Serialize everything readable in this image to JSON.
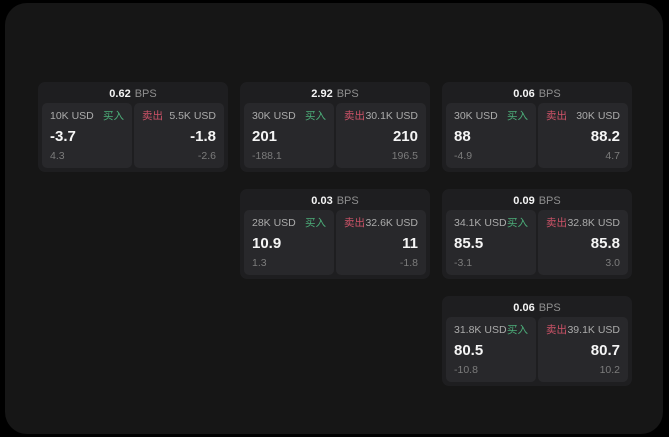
{
  "labels": {
    "buy": "买入",
    "sell": "卖出",
    "bps": "BPS"
  },
  "colors": {
    "buy_green": "#4caf7a",
    "sell_red": "#ce5368",
    "card_bg": "#1e1e20",
    "panel_bg": "#28282b",
    "app_bg": "#161616"
  },
  "cards": [
    {
      "bps": "0.62",
      "buy": {
        "size": "10K USD",
        "value": "-3.7",
        "sub": "4.3"
      },
      "sell": {
        "size": "5.5K USD",
        "value": "-1.8",
        "sub": "-2.6"
      }
    },
    {
      "bps": "2.92",
      "buy": {
        "size": "30K USD",
        "value": "201",
        "sub": "-188.1"
      },
      "sell": {
        "size": "30.1K USD",
        "value": "210",
        "sub": "196.5"
      }
    },
    {
      "bps": "0.06",
      "buy": {
        "size": "30K USD",
        "value": "88",
        "sub": "-4.9"
      },
      "sell": {
        "size": "30K USD",
        "value": "88.2",
        "sub": "4.7"
      }
    },
    {
      "bps": "0.03",
      "buy": {
        "size": "28K USD",
        "value": "10.9",
        "sub": "1.3"
      },
      "sell": {
        "size": "32.6K USD",
        "value": "11",
        "sub": "-1.8"
      }
    },
    {
      "bps": "0.09",
      "buy": {
        "size": "34.1K USD",
        "value": "85.5",
        "sub": "-3.1"
      },
      "sell": {
        "size": "32.8K USD",
        "value": "85.8",
        "sub": "3.0"
      }
    },
    {
      "bps": "0.06",
      "buy": {
        "size": "31.8K USD",
        "value": "80.5",
        "sub": "-10.8"
      },
      "sell": {
        "size": "39.1K USD",
        "value": "80.7",
        "sub": "10.2"
      }
    }
  ]
}
